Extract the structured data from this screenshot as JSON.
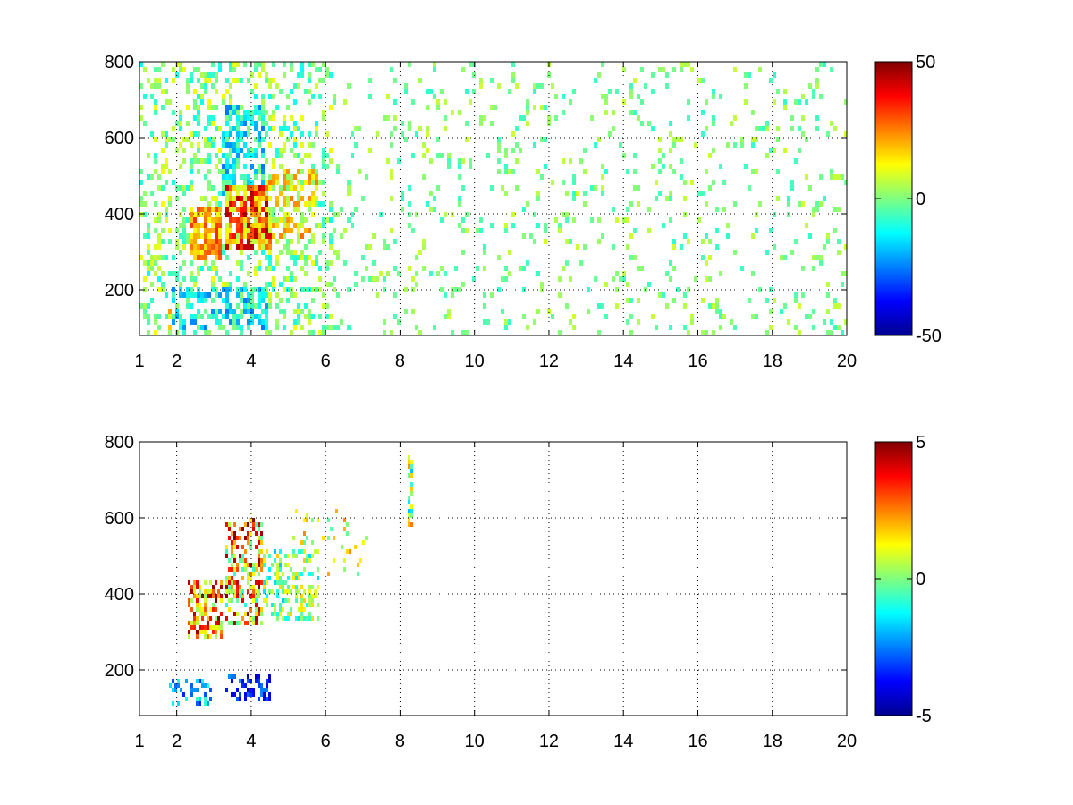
{
  "chart_data": [
    {
      "type": "heatmap",
      "title": "",
      "xlabel": "",
      "ylabel": "",
      "xlim": [
        1,
        20
      ],
      "ylim": [
        80,
        800
      ],
      "xticks": [
        1,
        2,
        4,
        6,
        8,
        10,
        12,
        14,
        16,
        18,
        20
      ],
      "yticks": [
        200,
        400,
        600,
        800
      ],
      "grid": true,
      "colormap": "jet",
      "colorbar": {
        "min": -50,
        "max": 50,
        "ticks": [
          50,
          0,
          -50
        ]
      },
      "data_description": "Sparse scattered cells across the full x range; dense cluster between x≈1.8 and x≈6 with strong positive (orange/red) values around y≈300-450 and negative (cyan/blue) around y≈100-200 and y≈450-650; beyond x≈6 scattered near-zero (green/yellow/cyan) cells in vertical streaks.",
      "clusters": [
        {
          "x": [
            2.3,
            3.2
          ],
          "y": [
            280,
            420
          ],
          "mean": 22,
          "spread": 12,
          "density": 0.85
        },
        {
          "x": [
            3.3,
            4.6
          ],
          "y": [
            300,
            470
          ],
          "mean": 25,
          "spread": 22,
          "density": 0.85
        },
        {
          "x": [
            4.4,
            5.8
          ],
          "y": [
            330,
            520
          ],
          "mean": 12,
          "spread": 15,
          "density": 0.6
        },
        {
          "x": [
            3.2,
            4.4
          ],
          "y": [
            450,
            680
          ],
          "mean": -12,
          "spread": 14,
          "density": 0.6
        },
        {
          "x": [
            1.9,
            4.5
          ],
          "y": [
            100,
            200
          ],
          "mean": -12,
          "spread": 14,
          "density": 0.6
        },
        {
          "x": [
            1.8,
            2.8
          ],
          "y": [
            100,
            160
          ],
          "mean": 15,
          "spread": 10,
          "density": 0.6
        },
        {
          "x": [
            1.0,
            6.2
          ],
          "y": [
            80,
            800
          ],
          "mean": 0,
          "spread": 12,
          "density": 0.3
        },
        {
          "x": [
            6.0,
            20.0
          ],
          "y": [
            80,
            800
          ],
          "mean": 0,
          "spread": 8,
          "density": 0.1
        }
      ]
    },
    {
      "type": "heatmap",
      "title": "",
      "xlabel": "",
      "ylabel": "",
      "xlim": [
        1,
        20
      ],
      "ylim": [
        80,
        800
      ],
      "xticks": [
        1,
        2,
        4,
        6,
        8,
        10,
        12,
        14,
        16,
        18,
        20
      ],
      "yticks": [
        200,
        400,
        600,
        800
      ],
      "grid": true,
      "colormap": "jet",
      "colorbar": {
        "min": -5,
        "max": 5,
        "ticks": [
          5,
          0,
          -5
        ]
      },
      "data_description": "Very sparse map: cells concentrated between x≈2.3 and x≈6 (y≈250-600), mostly strong positive (red/orange) and mixed values; blue/cyan cells near y≈120-200 for x≈2-5; a thin vertical column at x≈8.3 (y≈580-780) and a few isolated cells elsewhere.",
      "clusters": [
        {
          "x": [
            2.3,
            3.2
          ],
          "y": [
            280,
            440
          ],
          "mean": 2.5,
          "spread": 2.5,
          "density": 0.6
        },
        {
          "x": [
            3.3,
            4.3
          ],
          "y": [
            320,
            600
          ],
          "mean": 2.0,
          "spread": 3.0,
          "density": 0.5
        },
        {
          "x": [
            4.0,
            5.8
          ],
          "y": [
            330,
            520
          ],
          "mean": 0,
          "spread": 1.8,
          "density": 0.45
        },
        {
          "x": [
            1.8,
            3.0
          ],
          "y": [
            110,
            180
          ],
          "mean": -2,
          "spread": 1.5,
          "density": 0.3
        },
        {
          "x": [
            3.3,
            4.5
          ],
          "y": [
            120,
            190
          ],
          "mean": -3.5,
          "spread": 1.2,
          "density": 0.45
        },
        {
          "x": [
            8.2,
            8.35
          ],
          "y": [
            580,
            780
          ],
          "mean": 0.5,
          "spread": 2.5,
          "density": 0.6
        },
        {
          "x": [
            5.0,
            7.2
          ],
          "y": [
            450,
            620
          ],
          "mean": 1,
          "spread": 1.5,
          "density": 0.08
        }
      ]
    }
  ]
}
